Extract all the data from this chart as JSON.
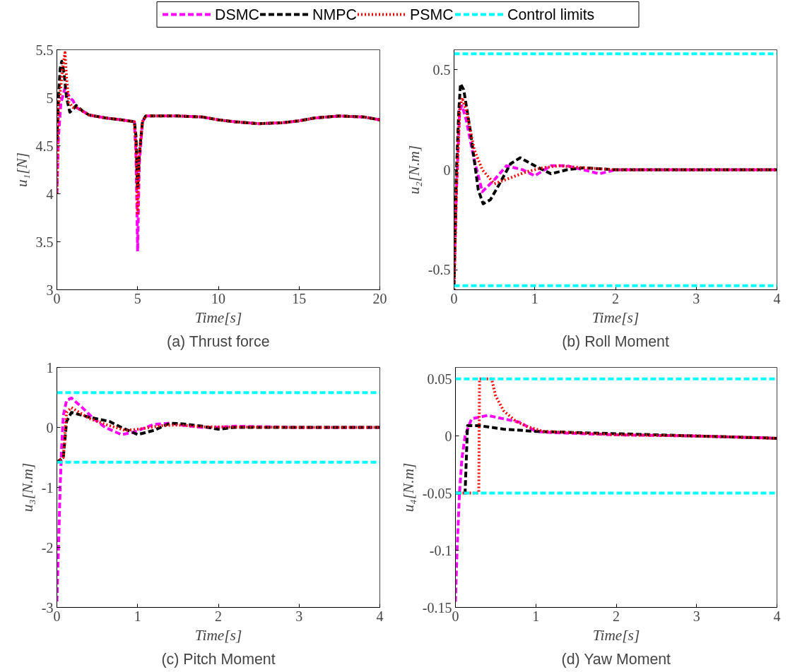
{
  "chart_data": [
    {
      "type": "line",
      "title": "(a) Thrust force",
      "xlabel": "Time[s]",
      "ylabel": "u₁[N]",
      "xlim": [
        0,
        20
      ],
      "xticks": [
        0,
        5,
        10,
        15,
        20
      ],
      "ylim": [
        3,
        5.5
      ],
      "yticks": [
        3,
        3.5,
        4,
        4.5,
        5,
        5.5
      ],
      "grid": false,
      "legend": "top",
      "series": [
        {
          "name": "DSMC",
          "color": "#ff00ff",
          "line_style": "dashed",
          "x": [
            0,
            0.1,
            0.25,
            0.5,
            0.8,
            1.0,
            1.2,
            1.6,
            2,
            3,
            4,
            4.8,
            4.9,
            5.0,
            5.1,
            5.3,
            5.5,
            6.5,
            7.5,
            9,
            10,
            11,
            12.5,
            14,
            15,
            16,
            17.5,
            19,
            20
          ],
          "values": [
            4.0,
            4.6,
            4.95,
            5.1,
            5.0,
            4.97,
            4.9,
            4.86,
            4.82,
            4.79,
            4.77,
            4.75,
            4.4,
            3.4,
            4.3,
            4.75,
            4.81,
            4.81,
            4.81,
            4.8,
            4.77,
            4.75,
            4.73,
            4.74,
            4.76,
            4.79,
            4.81,
            4.8,
            4.77
          ]
        },
        {
          "name": "NMPC",
          "color": "#000000",
          "line_style": "dashed",
          "x": [
            0,
            0.1,
            0.2,
            0.3,
            0.45,
            0.6,
            0.8,
            1.0,
            1.2,
            1.6,
            2,
            3,
            4,
            4.8,
            4.9,
            5.0,
            5.1,
            5.3,
            5.5,
            6.5,
            7.5,
            9,
            10,
            11,
            12.5,
            14,
            15,
            16,
            17.5,
            19,
            20
          ],
          "values": [
            4.56,
            5.0,
            5.3,
            5.38,
            5.25,
            5.0,
            4.85,
            4.88,
            4.92,
            4.86,
            4.82,
            4.79,
            4.77,
            4.75,
            4.6,
            4.05,
            4.4,
            4.75,
            4.81,
            4.81,
            4.81,
            4.8,
            4.77,
            4.75,
            4.73,
            4.74,
            4.76,
            4.79,
            4.81,
            4.8,
            4.77
          ]
        },
        {
          "name": "PSMC",
          "color": "#ff0000",
          "line_style": "dotted",
          "x": [
            0,
            0.1,
            0.2,
            0.35,
            0.5,
            0.6,
            0.75,
            1.0,
            1.2,
            1.6,
            2,
            3,
            4,
            4.8,
            4.9,
            5.0,
            5.1,
            5.3,
            5.5,
            6.5,
            7.5,
            9,
            10,
            11,
            12.5,
            14,
            15,
            16,
            17.5,
            19,
            20
          ],
          "values": [
            4.0,
            4.9,
            5.05,
            5.3,
            5.47,
            5.2,
            4.95,
            4.9,
            4.9,
            4.86,
            4.82,
            4.79,
            4.77,
            4.75,
            4.5,
            3.78,
            4.4,
            4.75,
            4.81,
            4.81,
            4.81,
            4.8,
            4.77,
            4.75,
            4.73,
            4.74,
            4.76,
            4.79,
            4.81,
            4.8,
            4.77
          ]
        }
      ]
    },
    {
      "type": "line",
      "title": "(b) Roll Moment",
      "xlabel": "Time[s]",
      "ylabel": "u₂[N.m]",
      "xlim": [
        0,
        4
      ],
      "xticks": [
        0,
        1,
        2,
        3,
        4
      ],
      "ylim": [
        -0.6,
        0.6
      ],
      "yticks": [
        -0.5,
        0,
        0.5
      ],
      "grid": false,
      "legend": "top",
      "ref_lines": [
        {
          "axis": "y",
          "value": 0.58,
          "label": "Control limits",
          "color": "#00ffff",
          "line_style": "dashed"
        },
        {
          "axis": "y",
          "value": -0.58,
          "color": "#00ffff",
          "line_style": "dashed"
        }
      ],
      "series": [
        {
          "color": "#ff00ff",
          "line_style": "dashed",
          "x": [
            0,
            0.03,
            0.07,
            0.1,
            0.15,
            0.25,
            0.35,
            0.5,
            0.65,
            0.85,
            1.0,
            1.2,
            1.4,
            1.6,
            1.8,
            2.0,
            2.5,
            3,
            4
          ],
          "values": [
            -0.55,
            -0.1,
            0.3,
            0.32,
            0.25,
            0.05,
            -0.11,
            -0.05,
            0.02,
            0.0,
            -0.03,
            0.02,
            0.02,
            0.0,
            -0.02,
            0.0,
            0.0,
            0.0,
            0.0
          ]
        },
        {
          "color": "#000000",
          "line_style": "dashed",
          "x": [
            0,
            0.03,
            0.06,
            0.08,
            0.12,
            0.2,
            0.3,
            0.36,
            0.45,
            0.55,
            0.7,
            0.82,
            1.0,
            1.2,
            1.4,
            1.6,
            2,
            3,
            4
          ],
          "values": [
            -0.58,
            0.0,
            0.3,
            0.43,
            0.4,
            0.2,
            -0.1,
            -0.17,
            -0.15,
            -0.08,
            0.03,
            0.06,
            0.02,
            -0.02,
            0.0,
            0.01,
            0.0,
            0.0,
            0.0
          ]
        },
        {
          "color": "#ff0000",
          "line_style": "dotted",
          "x": [
            0,
            0.03,
            0.07,
            0.1,
            0.15,
            0.25,
            0.35,
            0.5,
            0.7,
            0.9,
            1.1,
            1.3,
            1.6,
            2,
            3,
            4
          ],
          "values": [
            -0.6,
            -0.1,
            0.3,
            0.36,
            0.3,
            0.1,
            0.0,
            -0.07,
            -0.04,
            -0.01,
            0.01,
            0.02,
            0.01,
            0.0,
            0.0,
            0.0
          ]
        }
      ]
    },
    {
      "type": "line",
      "title": "(c) Pitch Moment",
      "xlabel": "Time[s]",
      "ylabel": "u₃[N.m]",
      "xlim": [
        0,
        4
      ],
      "xticks": [
        0,
        1,
        2,
        3,
        4
      ],
      "ylim": [
        -3,
        1
      ],
      "yticks": [
        -3,
        -2,
        -1,
        0,
        1
      ],
      "grid": false,
      "ref_lines": [
        {
          "axis": "y",
          "value": 0.58,
          "color": "#00ffff",
          "line_style": "dashed"
        },
        {
          "axis": "y",
          "value": -0.58,
          "color": "#00ffff",
          "line_style": "dashed"
        }
      ],
      "series": [
        {
          "color": "#ff00ff",
          "line_style": "dashed",
          "x": [
            0,
            0.02,
            0.04,
            0.06,
            0.08,
            0.12,
            0.18,
            0.3,
            0.45,
            0.6,
            0.8,
            0.95,
            1.2,
            1.4,
            1.6,
            1.8,
            2.0,
            2.2,
            3,
            4
          ],
          "values": [
            -2.9,
            -2.0,
            -1.0,
            -0.3,
            0.2,
            0.45,
            0.49,
            0.35,
            0.15,
            0.0,
            -0.12,
            -0.08,
            0.05,
            0.07,
            0.03,
            0.0,
            0.0,
            0.02,
            0.0,
            0.0
          ]
        },
        {
          "color": "#000000",
          "line_style": "dashed",
          "x": [
            0,
            0.08,
            0.12,
            0.18,
            0.4,
            0.65,
            0.8,
            1.0,
            1.2,
            1.4,
            1.55,
            1.8,
            2.0,
            2.2,
            3,
            4
          ],
          "values": [
            -0.58,
            -0.5,
            0.1,
            0.25,
            0.17,
            0.1,
            0.0,
            -0.12,
            -0.05,
            0.07,
            0.06,
            0.02,
            -0.03,
            0.0,
            0.0,
            0.0
          ]
        },
        {
          "color": "#ff0000",
          "line_style": "dotted",
          "x": [
            0,
            0.08,
            0.12,
            0.18,
            0.4,
            0.6,
            0.85,
            1.0,
            1.3,
            1.5,
            1.8,
            3,
            4
          ],
          "values": [
            -0.58,
            -0.5,
            0.25,
            0.33,
            0.15,
            0.05,
            -0.05,
            -0.03,
            0.03,
            0.04,
            0.01,
            0.0,
            0.0
          ]
        }
      ]
    },
    {
      "type": "line",
      "title": "(d) Yaw Moment",
      "xlabel": "Time[s]",
      "ylabel": "u₄[N.m]",
      "xlim": [
        0,
        4
      ],
      "xticks": [
        0,
        1,
        2,
        3,
        4
      ],
      "ylim": [
        -0.15,
        0.06
      ],
      "yticks": [
        -0.15,
        -0.1,
        -0.05,
        0,
        0.05
      ],
      "grid": false,
      "ref_lines": [
        {
          "axis": "y",
          "value": 0.05,
          "color": "#00ffff",
          "line_style": "dashed"
        },
        {
          "axis": "y",
          "value": -0.05,
          "color": "#00ffff",
          "line_style": "dashed"
        }
      ],
      "series": [
        {
          "color": "#ff00ff",
          "line_style": "dashed",
          "x": [
            0,
            0.02,
            0.05,
            0.08,
            0.12,
            0.2,
            0.4,
            0.6,
            0.8,
            1.0,
            1.2,
            2,
            3,
            4
          ],
          "values": [
            -0.145,
            -0.1,
            -0.05,
            -0.02,
            0.0,
            0.015,
            0.018,
            0.015,
            0.012,
            0.004,
            0.003,
            0.001,
            0.0,
            -0.002
          ]
        },
        {
          "color": "#000000",
          "line_style": "dashed",
          "x": [
            0,
            0.12,
            0.15,
            0.3,
            0.6,
            1,
            2,
            3,
            4
          ],
          "values": [
            -0.05,
            -0.05,
            0.009,
            0.009,
            0.006,
            0.004,
            0.002,
            0.0,
            -0.002
          ]
        },
        {
          "color": "#ff0000",
          "line_style": "dotted",
          "x": [
            0,
            0.29,
            0.3,
            0.45,
            0.5,
            0.6,
            0.75,
            0.9,
            1.1,
            2,
            3,
            4
          ],
          "values": [
            -0.05,
            -0.05,
            0.05,
            0.05,
            0.035,
            0.022,
            0.013,
            0.008,
            0.004,
            0.001,
            0.0,
            -0.002
          ]
        }
      ]
    }
  ]
}
